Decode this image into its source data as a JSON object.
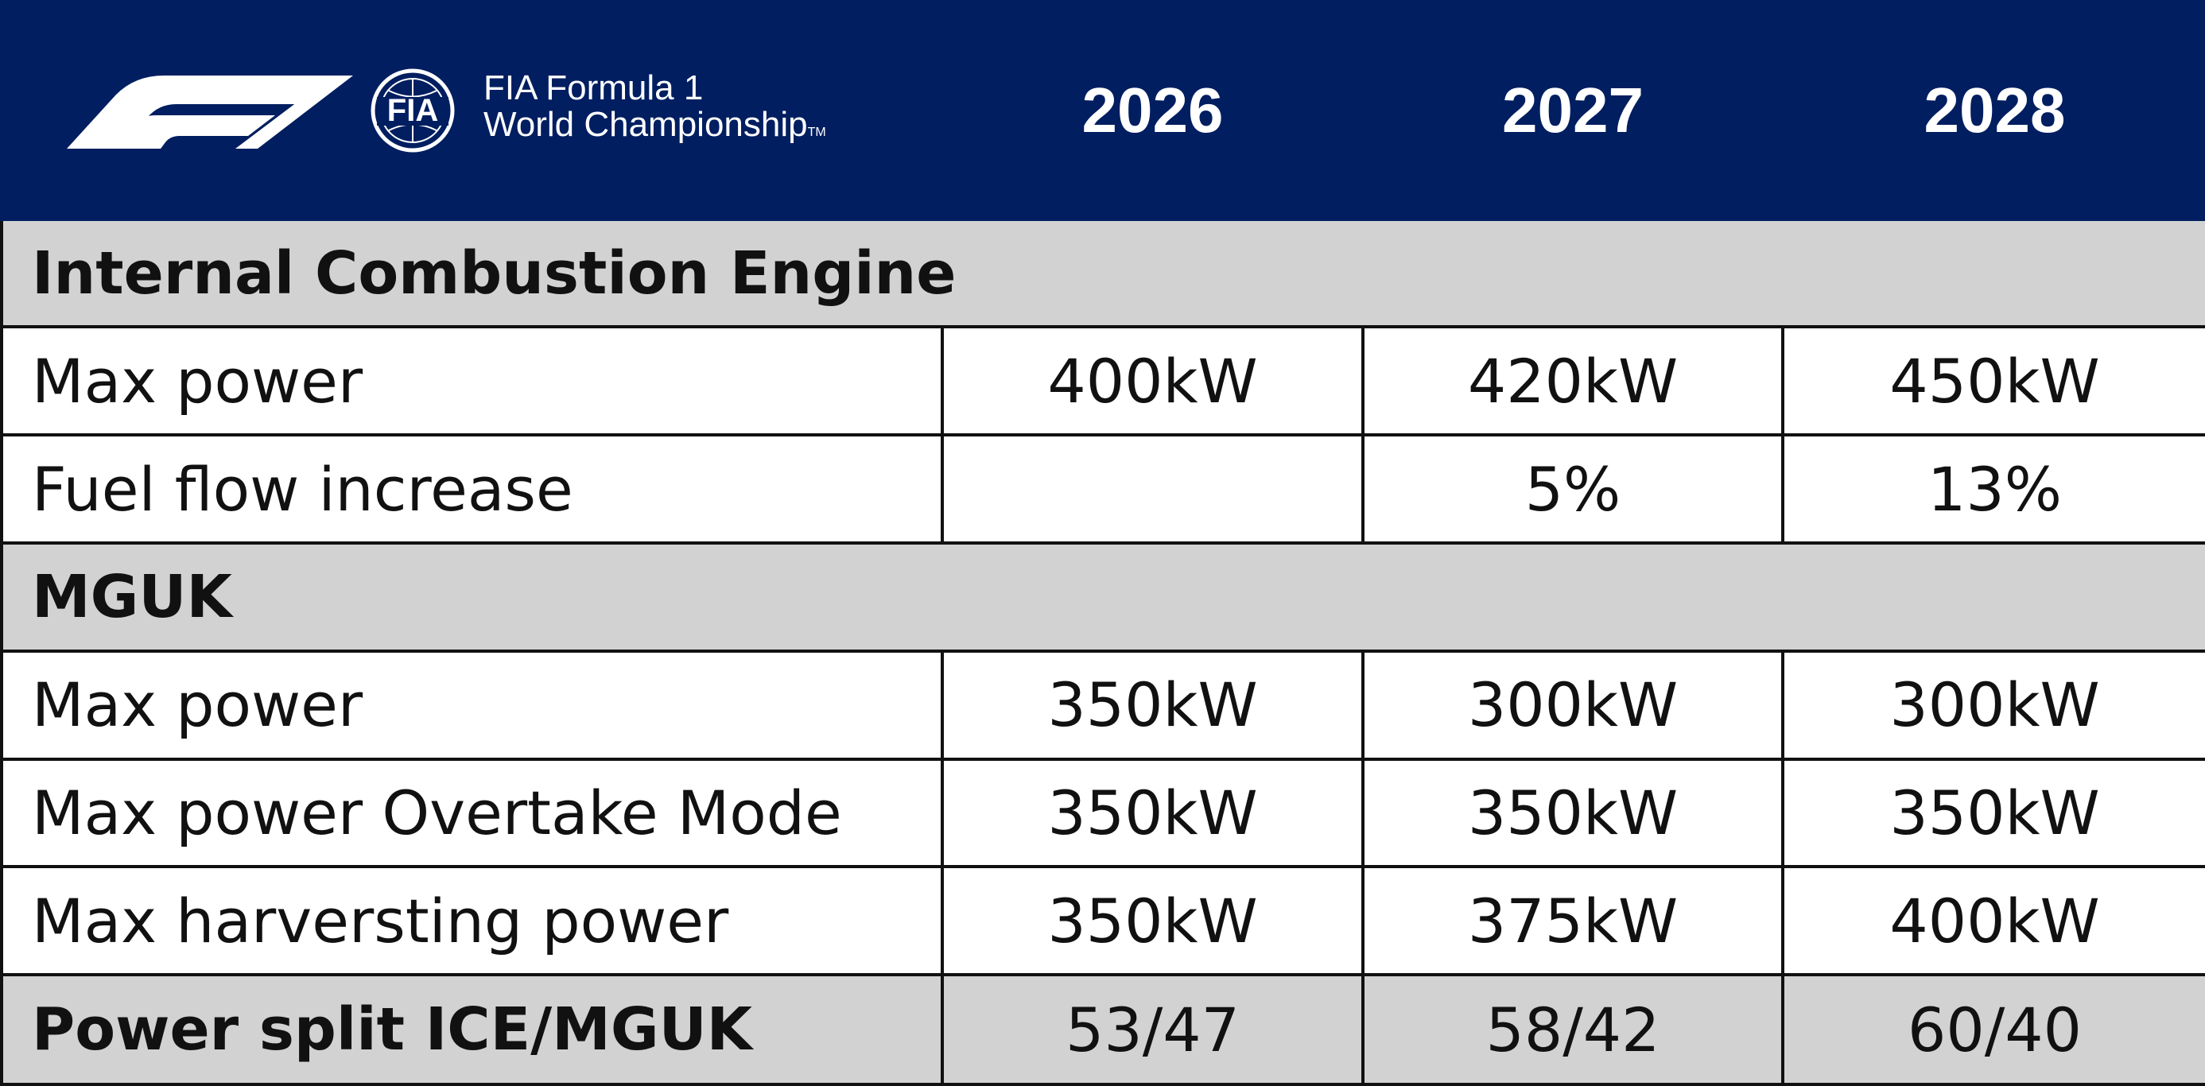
{
  "header": {
    "logo": {
      "f1_mark": "f1-logo",
      "fia_badge_text": "FIA",
      "line1": "FIA Formula 1",
      "line2": "World Championship",
      "trademark": "TM"
    },
    "years": [
      "2026",
      "2027",
      "2028"
    ]
  },
  "colors": {
    "header_bg": "#001e60",
    "section_bg": "#d2d2d2",
    "border": "#111111",
    "header_text": "#ffffff"
  },
  "sections": [
    {
      "title": "Internal Combustion Engine",
      "rows": [
        {
          "label": "Max power",
          "values": [
            "400kW",
            "420kW",
            "450kW"
          ]
        },
        {
          "label": "Fuel flow increase",
          "values": [
            "",
            "5%",
            "13%"
          ]
        }
      ]
    },
    {
      "title": "MGUK",
      "rows": [
        {
          "label": "Max power",
          "values": [
            "350kW",
            "300kW",
            "300kW"
          ]
        },
        {
          "label": "Max power Overtake Mode",
          "values": [
            "350kW",
            "350kW",
            "350kW"
          ]
        },
        {
          "label": "Max harversting power",
          "values": [
            "350kW",
            "375kW",
            "400kW"
          ]
        }
      ]
    }
  ],
  "power_split": {
    "label": "Power split ICE/MGUK",
    "values": [
      "53/47",
      "58/42",
      "60/40"
    ]
  }
}
